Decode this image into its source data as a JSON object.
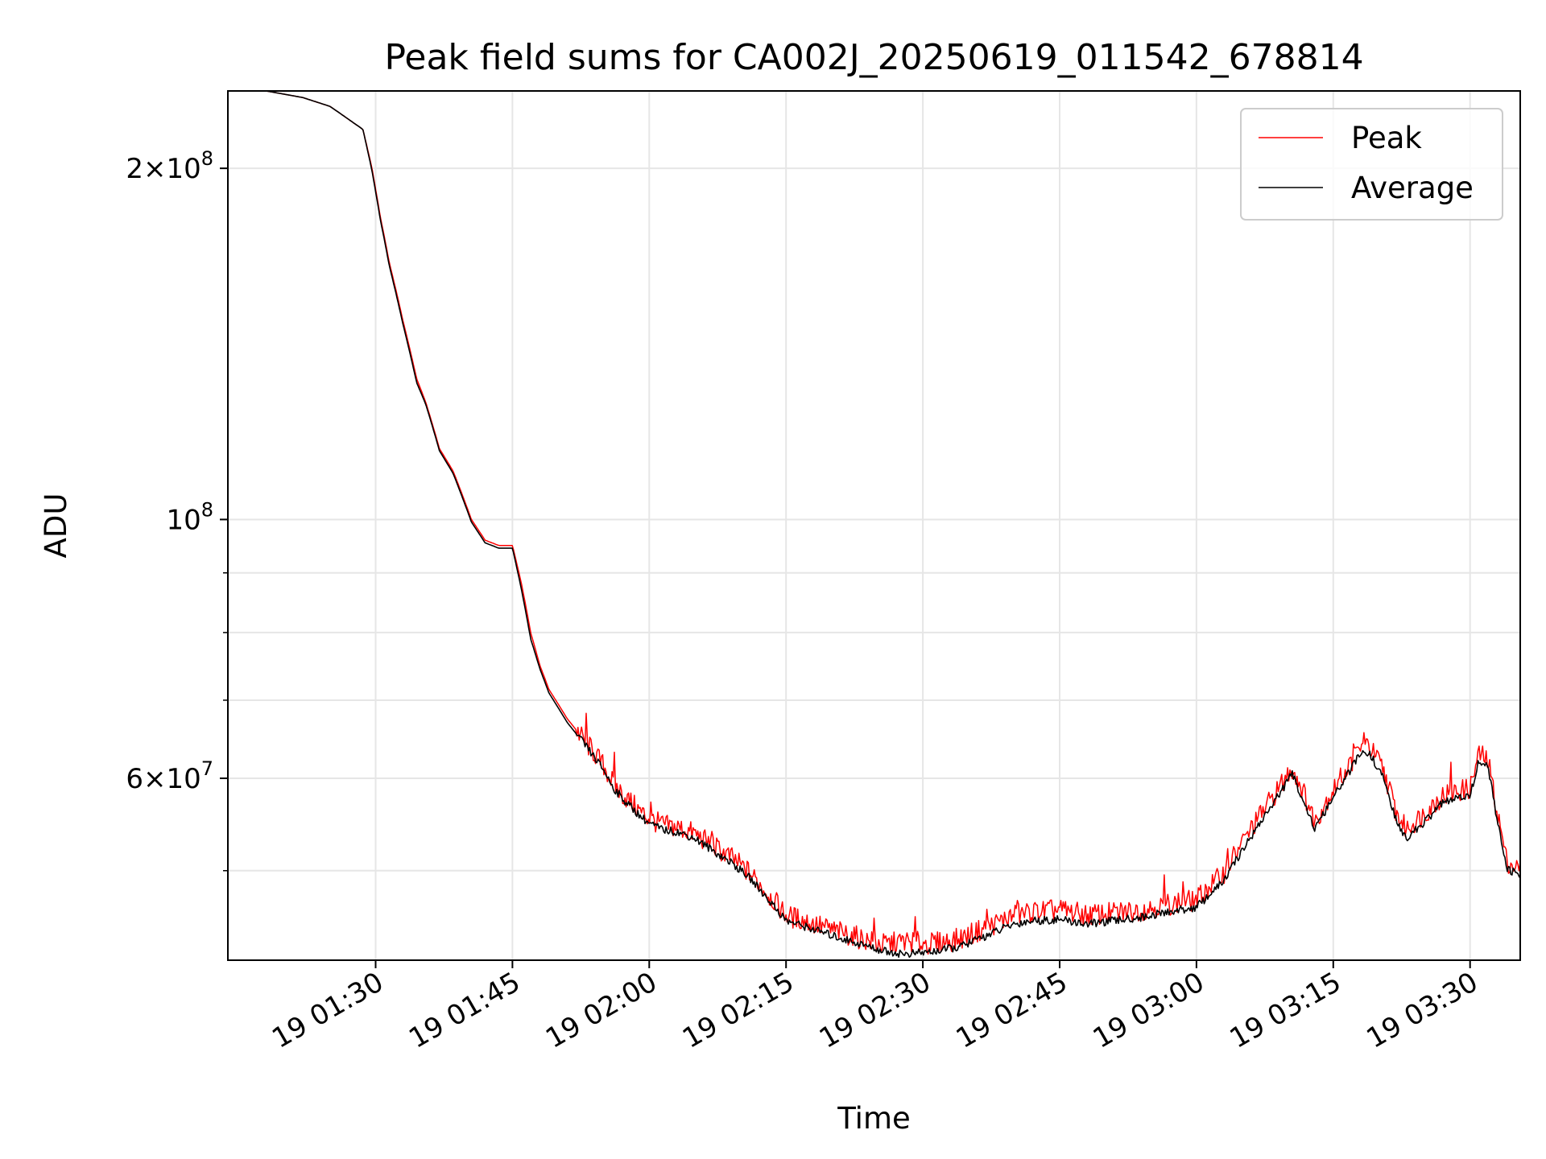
{
  "chart_data": {
    "type": "line",
    "title": "Peak field sums for CA002J_20250619_011542_678814",
    "xlabel": "Time",
    "ylabel": "ADU",
    "x_unit": "minutes after 19 01:00",
    "xlim": [
      13.8,
      155.5
    ],
    "ylim": [
      41900000,
      233000000
    ],
    "yscale": "log",
    "grid": true,
    "legend_position": "top-right",
    "x_ticks": [
      {
        "value": 30,
        "label": "19 01:30"
      },
      {
        "value": 45,
        "label": "19 01:45"
      },
      {
        "value": 60,
        "label": "19 02:00"
      },
      {
        "value": 75,
        "label": "19 02:15"
      },
      {
        "value": 90,
        "label": "19 02:30"
      },
      {
        "value": 105,
        "label": "19 02:45"
      },
      {
        "value": 120,
        "label": "19 03:00"
      },
      {
        "value": 135,
        "label": "19 03:15"
      },
      {
        "value": 150,
        "label": "19 03:30"
      }
    ],
    "y_ticks": [
      {
        "value": 200000000,
        "mantissa": "2",
        "exponent": "8"
      },
      {
        "value": 100000000,
        "mantissa": "",
        "exponent": "8"
      },
      {
        "value": 60000000,
        "mantissa": "6",
        "exponent": "7"
      }
    ],
    "y_minor_ticks": [
      50000000,
      70000000,
      80000000,
      90000000
    ],
    "series": [
      {
        "name": "Peak",
        "color": "#ff0000",
        "x": [
          13.8,
          18.0,
          22.0,
          25.0,
          27.5,
          28.6,
          29.6,
          30.5,
          31.5,
          33.0,
          34.5,
          35.5,
          37.0,
          38.5,
          39.5,
          40.5,
          42.0,
          43.5,
          45.0,
          46.0,
          47.0,
          48.0,
          49.0,
          50.0,
          51.0,
          52.0,
          53.0,
          54.0,
          55.0,
          56.0,
          57.0,
          58.0,
          59.0,
          60.0,
          61.5,
          63.0,
          65.0,
          67.0,
          69.0,
          71.0,
          73.0,
          75.0,
          77.0,
          80.0,
          83.0,
          85.5,
          88.0,
          91.0,
          94.0,
          97.0,
          100.0,
          102.0,
          105.0,
          108.0,
          111.0,
          114.0,
          117.0,
          120.0,
          123.0,
          126.0,
          129.0,
          130.5,
          131.5,
          133.0,
          134.0,
          135.5,
          137.0,
          138.0,
          139.0,
          140.5,
          142.0,
          143.0,
          145.0,
          147.0,
          148.5,
          150.0,
          151.0,
          152.0,
          153.0,
          154.0,
          155.5
        ],
        "y": [
          233000000,
          233000000,
          230000000,
          226000000,
          219000000,
          216000000,
          200000000,
          182000000,
          166000000,
          148000000,
          132000000,
          126000000,
          115000000,
          110000000,
          105000000,
          100000000,
          96000000,
          95000000,
          95000000,
          88000000,
          80000000,
          75000000,
          71500000,
          69500000,
          67500000,
          66000000,
          64500000,
          63000000,
          61500000,
          59500000,
          58200000,
          57200000,
          56200000,
          55400000,
          54700000,
          54500000,
          53800000,
          52500000,
          51300000,
          49800000,
          47800000,
          45800000,
          45300000,
          44500000,
          43800000,
          43200000,
          43500000,
          43300000,
          43700000,
          44700000,
          45800000,
          46100000,
          46300000,
          45800000,
          46000000,
          46300000,
          46800000,
          47200000,
          49800000,
          54300000,
          58800000,
          61200000,
          59000000,
          55000000,
          57000000,
          59500000,
          62000000,
          63800000,
          63800000,
          61000000,
          55800000,
          54300000,
          56000000,
          58000000,
          58500000,
          58800000,
          63000000,
          62000000,
          56000000,
          51000000,
          50000000
        ]
      },
      {
        "name": "Average",
        "color": "#000000",
        "x": [
          13.8,
          18.0,
          22.0,
          25.0,
          27.5,
          28.6,
          29.6,
          30.5,
          31.5,
          33.0,
          34.5,
          35.5,
          37.0,
          38.5,
          39.5,
          40.5,
          42.0,
          43.5,
          45.0,
          46.0,
          47.0,
          48.0,
          49.0,
          50.0,
          51.0,
          52.0,
          53.0,
          54.0,
          55.0,
          56.0,
          57.0,
          58.0,
          59.0,
          60.0,
          61.5,
          63.0,
          65.0,
          67.0,
          69.0,
          71.0,
          73.0,
          75.0,
          77.0,
          80.0,
          83.0,
          85.5,
          88.0,
          91.0,
          94.0,
          97.0,
          100.0,
          102.0,
          105.0,
          108.0,
          111.0,
          114.0,
          117.0,
          120.0,
          123.0,
          126.0,
          129.0,
          130.5,
          131.5,
          133.0,
          134.0,
          135.5,
          137.0,
          138.0,
          139.0,
          140.5,
          142.0,
          143.0,
          145.0,
          147.0,
          148.5,
          150.0,
          151.0,
          152.0,
          153.0,
          154.0,
          155.5
        ],
        "y": [
          233000000,
          233000000,
          230000000,
          226000000,
          219000000,
          216000000,
          199000000,
          181000000,
          165000000,
          147000000,
          131000000,
          125500000,
          114500000,
          109500000,
          104500000,
          99500000,
          95500000,
          94500000,
          94500000,
          87000000,
          79000000,
          74500000,
          71000000,
          69000000,
          67000000,
          65500000,
          64000000,
          62500000,
          61000000,
          59000000,
          57700000,
          56700000,
          55700000,
          54900000,
          54200000,
          54000000,
          53300000,
          52000000,
          50800000,
          49300000,
          47300000,
          45300000,
          44800000,
          44000000,
          43300000,
          42700000,
          42400000,
          42600000,
          43000000,
          44000000,
          45000000,
          45300000,
          45400000,
          45000000,
          45300000,
          45600000,
          46100000,
          46500000,
          49000000,
          53500000,
          58000000,
          60500000,
          58000000,
          54200000,
          56000000,
          58600000,
          61200000,
          63000000,
          63000000,
          60000000,
          54800000,
          53300000,
          55000000,
          57200000,
          57600000,
          58000000,
          62300000,
          61200000,
          55000000,
          50200000,
          49500000
        ]
      }
    ]
  }
}
